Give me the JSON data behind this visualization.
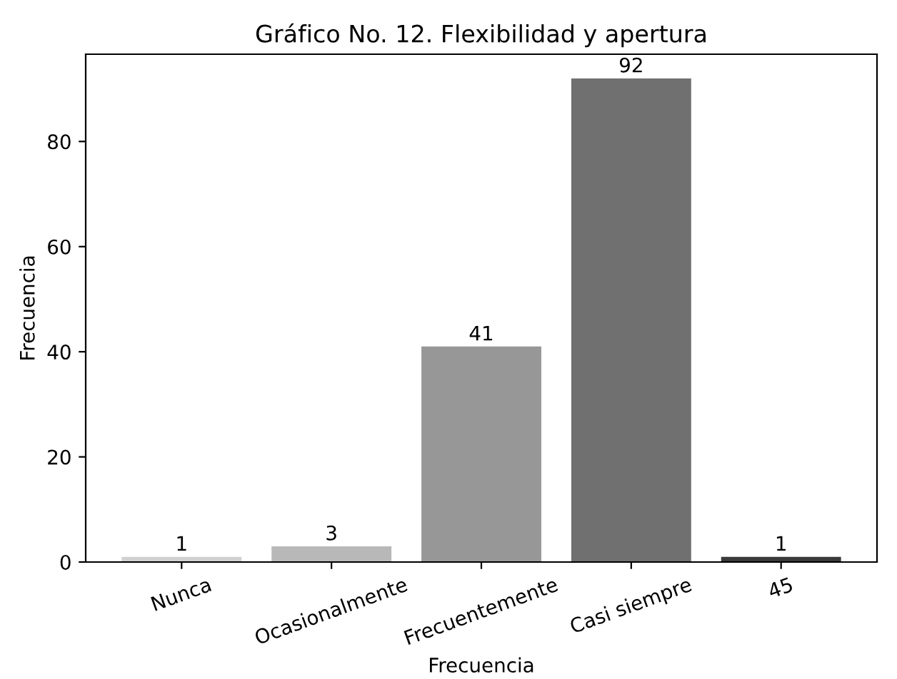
{
  "chart_data": {
    "type": "bar",
    "title": "Gráfico No. 12. Flexibilidad y apertura",
    "xlabel": "Frecuencia",
    "ylabel": "Frecuencia",
    "categories": [
      "Nunca",
      "Ocasionalmente",
      "Frecuentemente",
      "Casi siempre",
      "45"
    ],
    "values": [
      1,
      3,
      41,
      92,
      1
    ],
    "colors": [
      "#d0d0d0",
      "#b8b8b8",
      "#979797",
      "#707070",
      "#3a3a3a"
    ],
    "ylim": [
      0,
      96.6
    ],
    "yticks": [
      0,
      20,
      40,
      60,
      80
    ],
    "data_labels": true,
    "grid": false
  }
}
